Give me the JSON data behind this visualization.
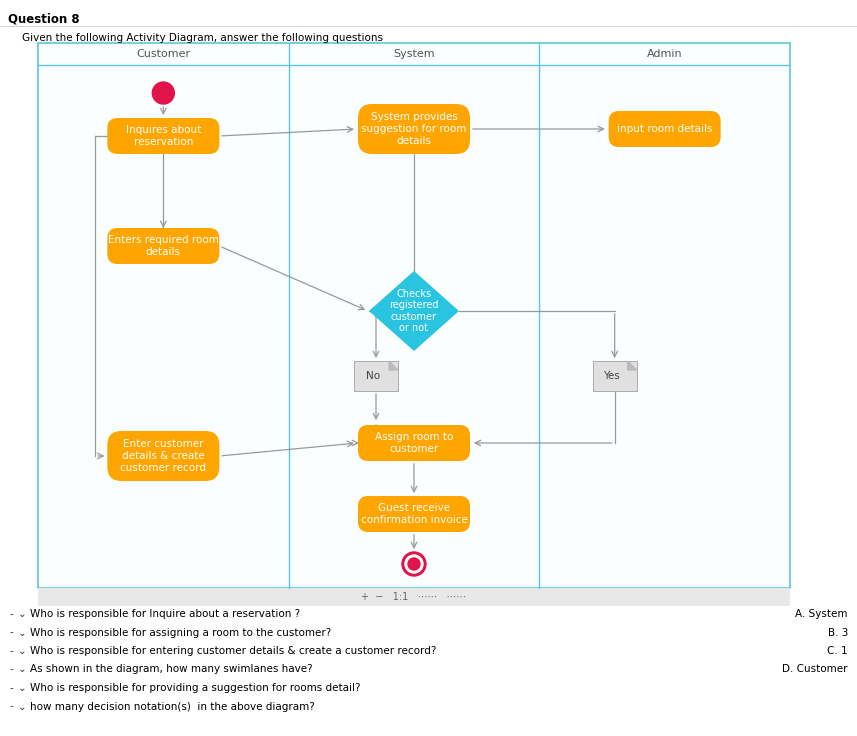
{
  "title": "Question 8",
  "subtitle": "Given the following Activity Diagram, answer the following questions",
  "swimlanes": [
    "Customer",
    "System",
    "Admin"
  ],
  "swimlane_border": "#5bc8d9",
  "orange_color": "#FFA500",
  "cyan_color": "#29C4E0",
  "arrow_color": "#999999",
  "start_color": "#e0134a",
  "questions": [
    {
      "text": "Who is responsible for Inquire about a reservation ?",
      "answer": "A. System"
    },
    {
      "text": "Who is responsible for assigning a room to the customer?",
      "answer": "B. 3"
    },
    {
      "text": "Who is responsible for entering customer details & create a customer record?",
      "answer": "C. 1"
    },
    {
      "text": "As shown in the diagram, how many swimlanes have?",
      "answer": "D. Customer"
    },
    {
      "text": "Who is responsible for providing a suggestion for rooms detail?",
      "answer": ""
    },
    {
      "text": "how many decision notation(s)  in the above diagram?",
      "answer": ""
    }
  ]
}
